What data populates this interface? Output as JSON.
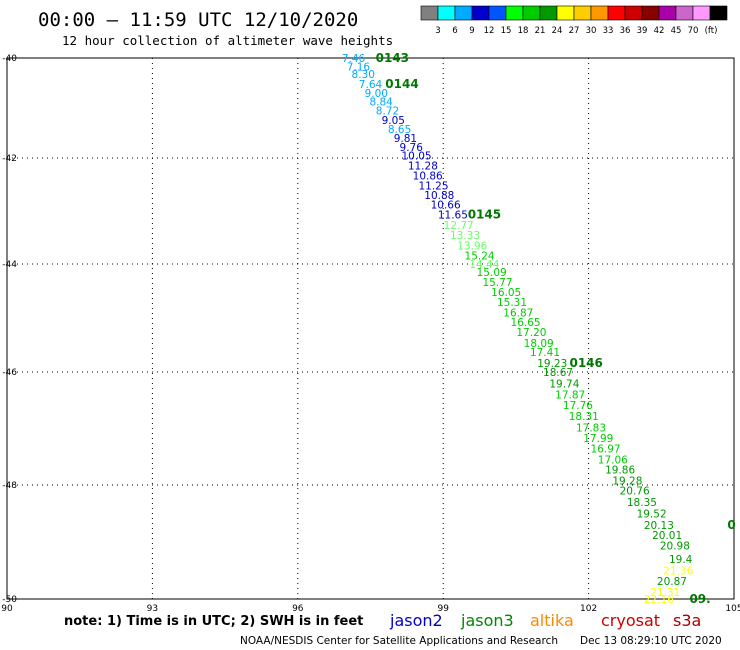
{
  "header": {
    "title": "00:00 – 11:59 UTC 12/10/2020",
    "subtitle": "12 hour collection of altimeter wave heights"
  },
  "legend": {
    "unit": "(ft)",
    "colors": [
      "#808080",
      "#00ffff",
      "#00aaff",
      "#0000cc",
      "#0055ff",
      "#00ff00",
      "#00cc00",
      "#009900",
      "#ffff00",
      "#ffcc00",
      "#ff9900",
      "#ff0000",
      "#cc0000",
      "#880000",
      "#aa00aa",
      "#cc66cc",
      "#ff99ff",
      "#000000"
    ],
    "labels": [
      "3",
      "6",
      "9",
      "12",
      "15",
      "18",
      "21",
      "24",
      "27",
      "30",
      "33",
      "36",
      "39",
      "42",
      "45",
      "70"
    ]
  },
  "axes": {
    "lon_labels": [
      "90",
      "93",
      "96",
      "99",
      "102",
      "105"
    ],
    "lat_labels": [
      "-40",
      "-42",
      "-44",
      "-46",
      "-48",
      "-50"
    ]
  },
  "track": {
    "observations": [
      {
        "lon": 97.15,
        "lat": -40.0,
        "value": "7.46",
        "color": "#00aaff"
      },
      {
        "lon": 97.25,
        "lat": -40.17,
        "value": "7.16",
        "color": "#00aaff"
      },
      {
        "lon": 97.35,
        "lat": -40.32,
        "value": "8.30",
        "color": "#00aaff"
      },
      {
        "lon": 97.5,
        "lat": -40.52,
        "value": "7.64",
        "color": "#00aaff"
      },
      {
        "lon": 97.62,
        "lat": -40.7,
        "value": "9.00",
        "color": "#00aaff"
      },
      {
        "lon": 97.72,
        "lat": -40.87,
        "value": "8.84",
        "color": "#00aaff"
      },
      {
        "lon": 97.85,
        "lat": -41.05,
        "value": "8.72",
        "color": "#00aaff"
      },
      {
        "lon": 97.97,
        "lat": -41.24,
        "value": "9.05",
        "color": "#0000cc"
      },
      {
        "lon": 98.1,
        "lat": -41.42,
        "value": "8.65",
        "color": "#00aaff"
      },
      {
        "lon": 98.22,
        "lat": -41.6,
        "value": "9.81",
        "color": "#0000cc"
      },
      {
        "lon": 98.34,
        "lat": -41.78,
        "value": "9.76",
        "color": "#0000cc"
      },
      {
        "lon": 98.45,
        "lat": -41.95,
        "value": "10.05",
        "color": "#0000cc"
      },
      {
        "lon": 98.58,
        "lat": -42.14,
        "value": "11.28",
        "color": "#0000cc"
      },
      {
        "lon": 98.68,
        "lat": -42.33,
        "value": "10.86",
        "color": "#0000cc"
      },
      {
        "lon": 98.8,
        "lat": -42.52,
        "value": "11.25",
        "color": "#0000cc"
      },
      {
        "lon": 98.92,
        "lat": -42.7,
        "value": "10.88",
        "color": "#0000cc"
      },
      {
        "lon": 99.05,
        "lat": -42.88,
        "value": "10.66",
        "color": "#0000cc"
      },
      {
        "lon": 99.2,
        "lat": -43.07,
        "value": "11.65",
        "color": "#0000cc"
      },
      {
        "lon": 99.32,
        "lat": -43.26,
        "value": "12.77",
        "color": "#66ff66"
      },
      {
        "lon": 99.45,
        "lat": -43.45,
        "value": "13.33",
        "color": "#66ff66"
      },
      {
        "lon": 99.6,
        "lat": -43.65,
        "value": "13.96",
        "color": "#66ff66"
      },
      {
        "lon": 99.75,
        "lat": -43.84,
        "value": "15.24",
        "color": "#00cc00"
      },
      {
        "lon": 99.85,
        "lat": -44.0,
        "value": "14.44",
        "color": "#66ff66"
      },
      {
        "lon": 100.0,
        "lat": -44.15,
        "value": "15.09",
        "color": "#00cc00"
      },
      {
        "lon": 100.12,
        "lat": -44.33,
        "value": "15.77",
        "color": "#00cc00"
      },
      {
        "lon": 100.3,
        "lat": -44.52,
        "value": "16.05",
        "color": "#00cc00"
      },
      {
        "lon": 100.42,
        "lat": -44.7,
        "value": "15.31",
        "color": "#00cc00"
      },
      {
        "lon": 100.55,
        "lat": -44.9,
        "value": "16.87",
        "color": "#00cc00"
      },
      {
        "lon": 100.7,
        "lat": -45.07,
        "value": "16.65",
        "color": "#00cc00"
      },
      {
        "lon": 100.82,
        "lat": -45.26,
        "value": "17.20",
        "color": "#00cc00"
      },
      {
        "lon": 100.97,
        "lat": -45.46,
        "value": "18.09",
        "color": "#00cc00"
      },
      {
        "lon": 101.1,
        "lat": -45.63,
        "value": "17.41",
        "color": "#00cc00"
      },
      {
        "lon": 101.25,
        "lat": -45.83,
        "value": "19.23",
        "color": "#009900"
      },
      {
        "lon": 101.37,
        "lat": -46.0,
        "value": "18.67",
        "color": "#009900"
      },
      {
        "lon": 101.5,
        "lat": -46.2,
        "value": "19.74",
        "color": "#009900"
      },
      {
        "lon": 101.62,
        "lat": -46.4,
        "value": "17.87",
        "color": "#00cc00"
      },
      {
        "lon": 101.78,
        "lat": -46.58,
        "value": "17.76",
        "color": "#00cc00"
      },
      {
        "lon": 101.9,
        "lat": -46.78,
        "value": "18.31",
        "color": "#00cc00"
      },
      {
        "lon": 102.05,
        "lat": -46.98,
        "value": "17.83",
        "color": "#00cc00"
      },
      {
        "lon": 102.2,
        "lat": -47.17,
        "value": "17.99",
        "color": "#00cc00"
      },
      {
        "lon": 102.35,
        "lat": -47.35,
        "value": "16.97",
        "color": "#00cc00"
      },
      {
        "lon": 102.5,
        "lat": -47.55,
        "value": "17.06",
        "color": "#00cc00"
      },
      {
        "lon": 102.65,
        "lat": -47.73,
        "value": "19.86",
        "color": "#009900"
      },
      {
        "lon": 102.8,
        "lat": -47.92,
        "value": "19.28",
        "color": "#009900"
      },
      {
        "lon": 102.95,
        "lat": -48.1,
        "value": "20.76",
        "color": "#009900"
      },
      {
        "lon": 103.1,
        "lat": -48.3,
        "value": "18.35",
        "color": "#009900"
      },
      {
        "lon": 103.3,
        "lat": -48.5,
        "value": "19.52",
        "color": "#009900"
      },
      {
        "lon": 103.45,
        "lat": -48.7,
        "value": "20.13",
        "color": "#009900"
      },
      {
        "lon": 103.62,
        "lat": -48.88,
        "value": "20.01",
        "color": "#009900"
      },
      {
        "lon": 103.78,
        "lat": -49.06,
        "value": "20.98",
        "color": "#009900"
      },
      {
        "lon": 103.9,
        "lat": -49.3,
        "value": "19.4",
        "color": "#009900"
      },
      {
        "lon": 103.85,
        "lat": -49.5,
        "value": "21.36",
        "color": "#ffff00"
      },
      {
        "lon": 103.72,
        "lat": -49.68,
        "value": "20.87",
        "color": "#009900"
      },
      {
        "lon": 103.58,
        "lat": -49.88,
        "value": "21.31",
        "color": "#ffff00"
      },
      {
        "lon": 103.45,
        "lat": -50.0,
        "value": "22.16",
        "color": "#ffff00"
      }
    ],
    "time_labels": [
      {
        "text": "0143",
        "lon": 97.95,
        "lat": -40.0
      },
      {
        "text": "0144",
        "lon": 98.15,
        "lat": -40.52
      },
      {
        "text": "0145",
        "lon": 99.85,
        "lat": -43.07
      },
      {
        "text": "0146",
        "lon": 101.95,
        "lat": -45.83
      },
      {
        "text": "0",
        "lon": 104.95,
        "lat": -48.7
      },
      {
        "text": "09.",
        "lon": 104.3,
        "lat": -50.0
      }
    ],
    "time_color": "#007700"
  },
  "footer": {
    "note": "note: 1) Time is in UTC; 2) SWH is in feet",
    "satellites": [
      {
        "name": "jason2",
        "color": "#0000cc"
      },
      {
        "name": "jason3",
        "color": "#008800"
      },
      {
        "name": "altika",
        "color": "#ff8800"
      },
      {
        "name": "cryosat",
        "color": "#cc0000"
      },
      {
        "name": "s3a",
        "color": "#aa0000"
      }
    ],
    "credit": "NOAA/NESDIS Center for Satellite Applications and Research",
    "timestamp": "Dec 13 08:29:10 UTC 2020"
  }
}
